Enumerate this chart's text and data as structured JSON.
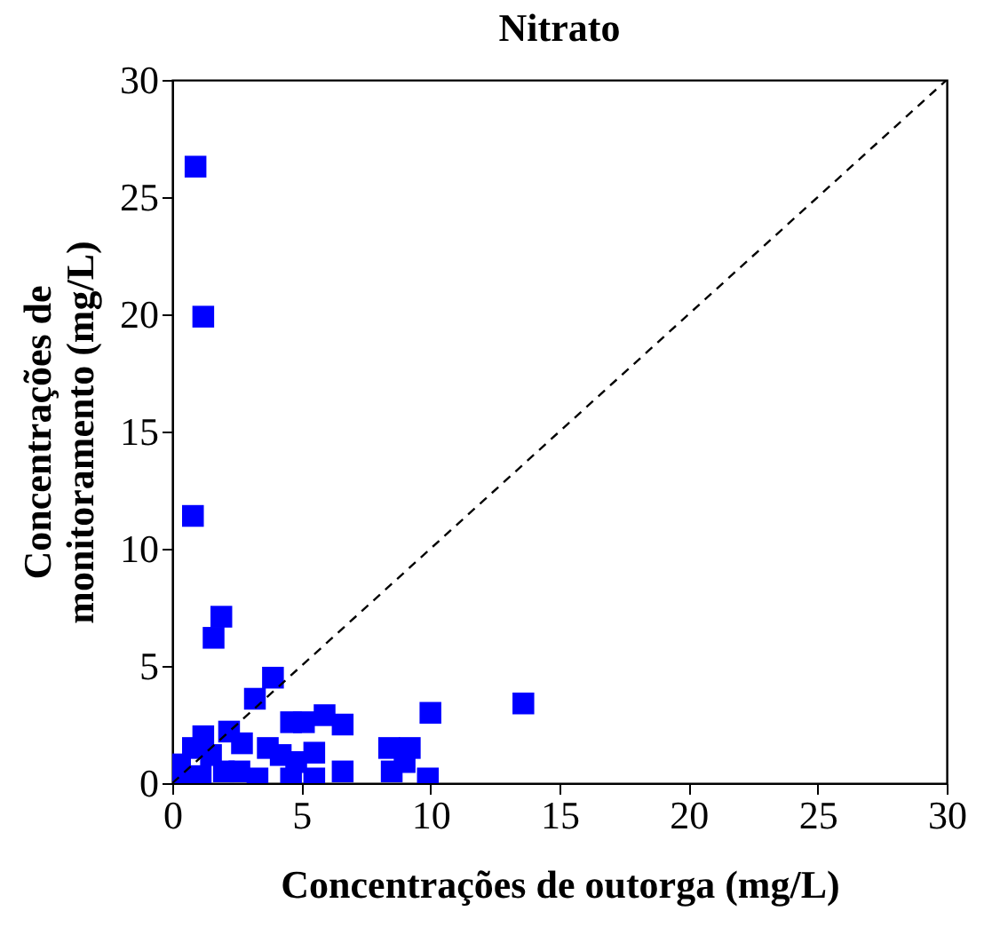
{
  "chart_data": {
    "type": "scatter",
    "title": "Nitrato",
    "xlabel": "Concentrações de outorga (mg/L)",
    "ylabel": "Concentrações de\nmonitoramento (mg/L)",
    "xlim": [
      0,
      30
    ],
    "ylim": [
      0,
      30
    ],
    "xticks": [
      0,
      5,
      10,
      15,
      20,
      25,
      30
    ],
    "yticks": [
      0,
      5,
      10,
      15,
      20,
      25,
      30
    ],
    "grid": false,
    "series": [
      {
        "color": "#0000ff",
        "marker": "square",
        "x": [
          0.9,
          1.2,
          0.8,
          1.9,
          1.6,
          3.9,
          3.2,
          13.6,
          10.0,
          5.9,
          4.6,
          5.1,
          6.6,
          2.2,
          2.7,
          1.2,
          0.8,
          1.5,
          3.7,
          4.2,
          4.8,
          5.5,
          8.4,
          9.2,
          9.0,
          8.5,
          6.6,
          9.9,
          0.3,
          0.3,
          1.1,
          2.0,
          2.6,
          3.3,
          4.6,
          5.5
        ],
        "values": [
          26.3,
          19.9,
          11.4,
          7.1,
          6.2,
          4.5,
          3.6,
          3.4,
          3.0,
          2.9,
          2.6,
          2.6,
          2.5,
          2.2,
          1.7,
          2.0,
          1.5,
          1.2,
          1.5,
          1.2,
          0.9,
          1.3,
          1.5,
          1.5,
          0.9,
          0.5,
          0.5,
          0.2,
          0.8,
          0.3,
          0.3,
          0.5,
          0.5,
          0.2,
          0.2,
          0.2
        ]
      },
      {
        "type": "line",
        "color": "#000000",
        "line_style": "dashed",
        "x": [
          0,
          30
        ],
        "values": [
          0,
          30
        ]
      }
    ]
  }
}
